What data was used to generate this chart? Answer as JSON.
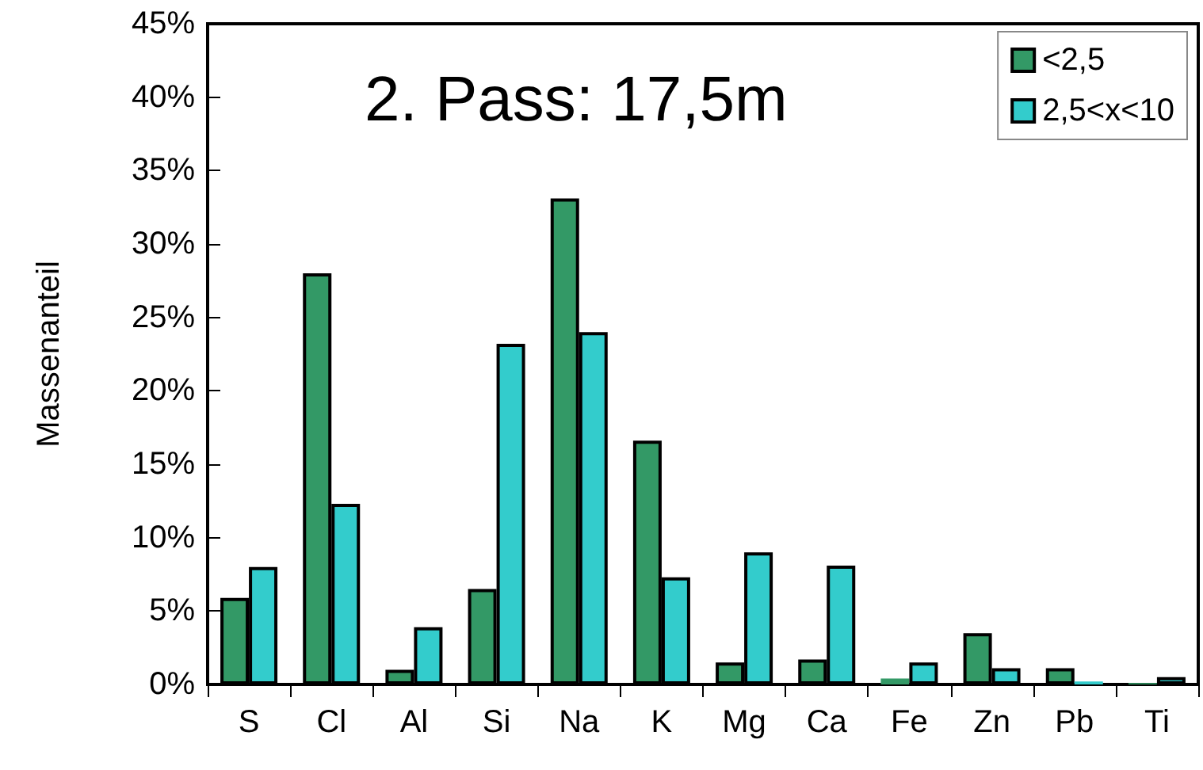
{
  "chart_data": {
    "type": "bar",
    "title": "2. Pass: 17,5m",
    "ylabel": "Massenanteil",
    "categories": [
      "S",
      "Cl",
      "Al",
      "Si",
      "Na",
      "K",
      "Mg",
      "Ca",
      "Fe",
      "Zn",
      "Pb",
      "Ti"
    ],
    "series": [
      {
        "name": "<2,5",
        "color": "#339966",
        "values": [
          5.9,
          28.0,
          1.0,
          6.5,
          33.1,
          16.6,
          1.5,
          1.7,
          0.4,
          3.5,
          1.1,
          0.1
        ]
      },
      {
        "name": "2,5<x<10",
        "color": "#33cccc",
        "values": [
          8.0,
          12.3,
          3.9,
          23.2,
          24.0,
          7.3,
          9.0,
          8.1,
          1.5,
          1.1,
          0.2,
          0.5
        ]
      }
    ],
    "ylim": [
      0,
      45
    ],
    "yticks": [
      {
        "value": 0,
        "label": "0%"
      },
      {
        "value": 5,
        "label": "5%"
      },
      {
        "value": 10,
        "label": "10%"
      },
      {
        "value": 15,
        "label": "15%"
      },
      {
        "value": 20,
        "label": "20%"
      },
      {
        "value": 25,
        "label": "25%"
      },
      {
        "value": 30,
        "label": "30%"
      },
      {
        "value": 35,
        "label": "35%"
      },
      {
        "value": 40,
        "label": "40%"
      },
      {
        "value": 45,
        "label": "45%"
      }
    ],
    "grid": false,
    "legend": "top right"
  }
}
